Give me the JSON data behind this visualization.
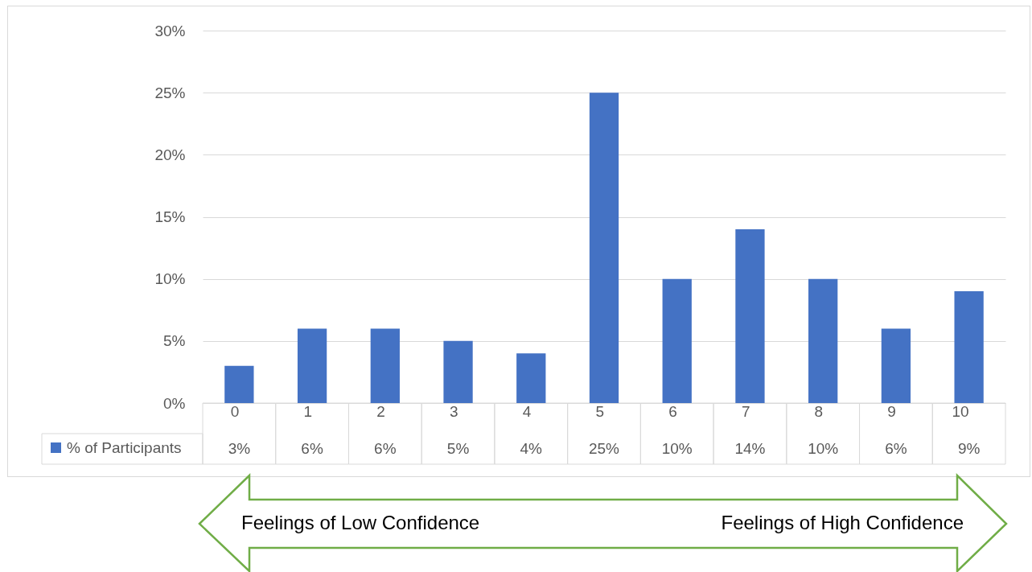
{
  "chart_data": {
    "type": "bar",
    "categories": [
      "0",
      "1",
      "2",
      "3",
      "4",
      "5",
      "6",
      "7",
      "8",
      "9",
      "10"
    ],
    "series": [
      {
        "name": "% of Participants",
        "color": "#4472c4",
        "values": [
          3,
          6,
          6,
          5,
          4,
          25,
          10,
          14,
          10,
          6,
          9
        ],
        "value_labels": [
          "3%",
          "6%",
          "6%",
          "5%",
          "4%",
          "25%",
          "10%",
          "14%",
          "10%",
          "6%",
          "9%"
        ]
      }
    ],
    "ylim": [
      0,
      30
    ],
    "yticks": [
      {
        "value": 0,
        "label": "0%"
      },
      {
        "value": 5,
        "label": "5%"
      },
      {
        "value": 10,
        "label": "10%"
      },
      {
        "value": 15,
        "label": "15%"
      },
      {
        "value": 20,
        "label": "20%"
      },
      {
        "value": 25,
        "label": "25%"
      },
      {
        "value": 30,
        "label": "30%"
      }
    ],
    "grid": "y",
    "legend": "bottom left",
    "annotations": [
      "Feelings of Low Confidence",
      "Feelings of High Confidence"
    ]
  }
}
